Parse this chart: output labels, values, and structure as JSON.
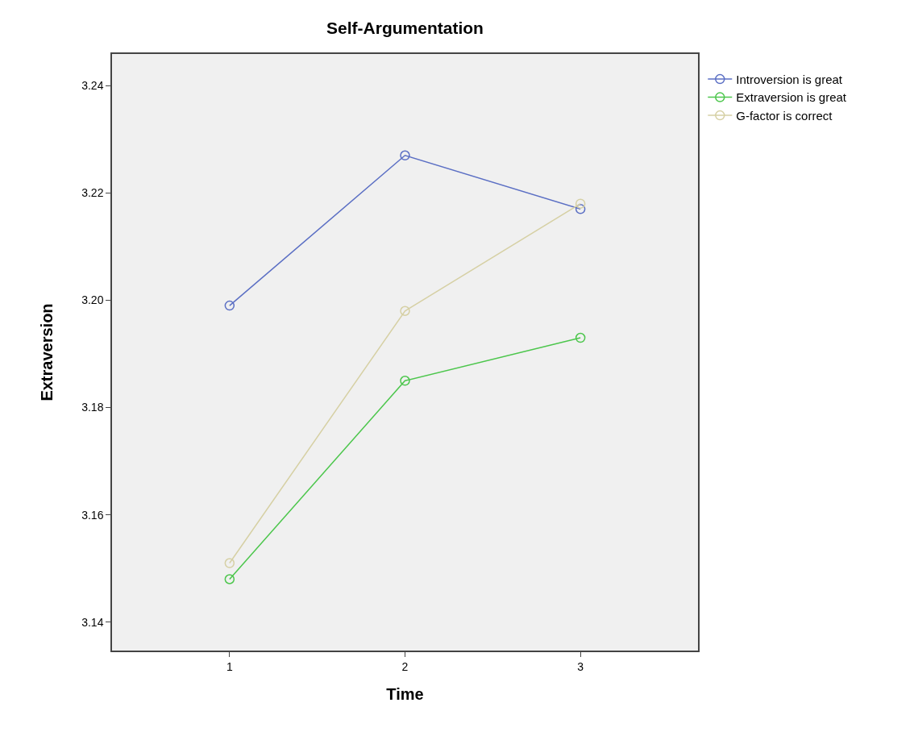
{
  "chart_data": {
    "type": "line",
    "title": "Self-Argumentation",
    "xlabel": "Time",
    "ylabel": "Extraversion",
    "x": [
      1,
      2,
      3
    ],
    "series": [
      {
        "name": "Introversion is great",
        "color": "#5b6fc4",
        "values": [
          3.199,
          3.227,
          3.217
        ]
      },
      {
        "name": "Extraversion is great",
        "color": "#4cc64c",
        "values": [
          3.148,
          3.185,
          3.193
        ]
      },
      {
        "name": "G-factor is correct",
        "color": "#d6d0a4",
        "values": [
          3.151,
          3.198,
          3.218
        ]
      }
    ],
    "xlim": [
      0.33,
      3.67
    ],
    "xticks": [
      1,
      2,
      3
    ],
    "ylim": [
      3.1347,
      3.2459
    ],
    "yticks": [
      3.14,
      3.16,
      3.18,
      {
        "value": 3.2,
        "label": "3.20"
      },
      3.22,
      3.24
    ],
    "grid": false,
    "legend": "top right",
    "marker": "circle",
    "line_style": "solid"
  }
}
